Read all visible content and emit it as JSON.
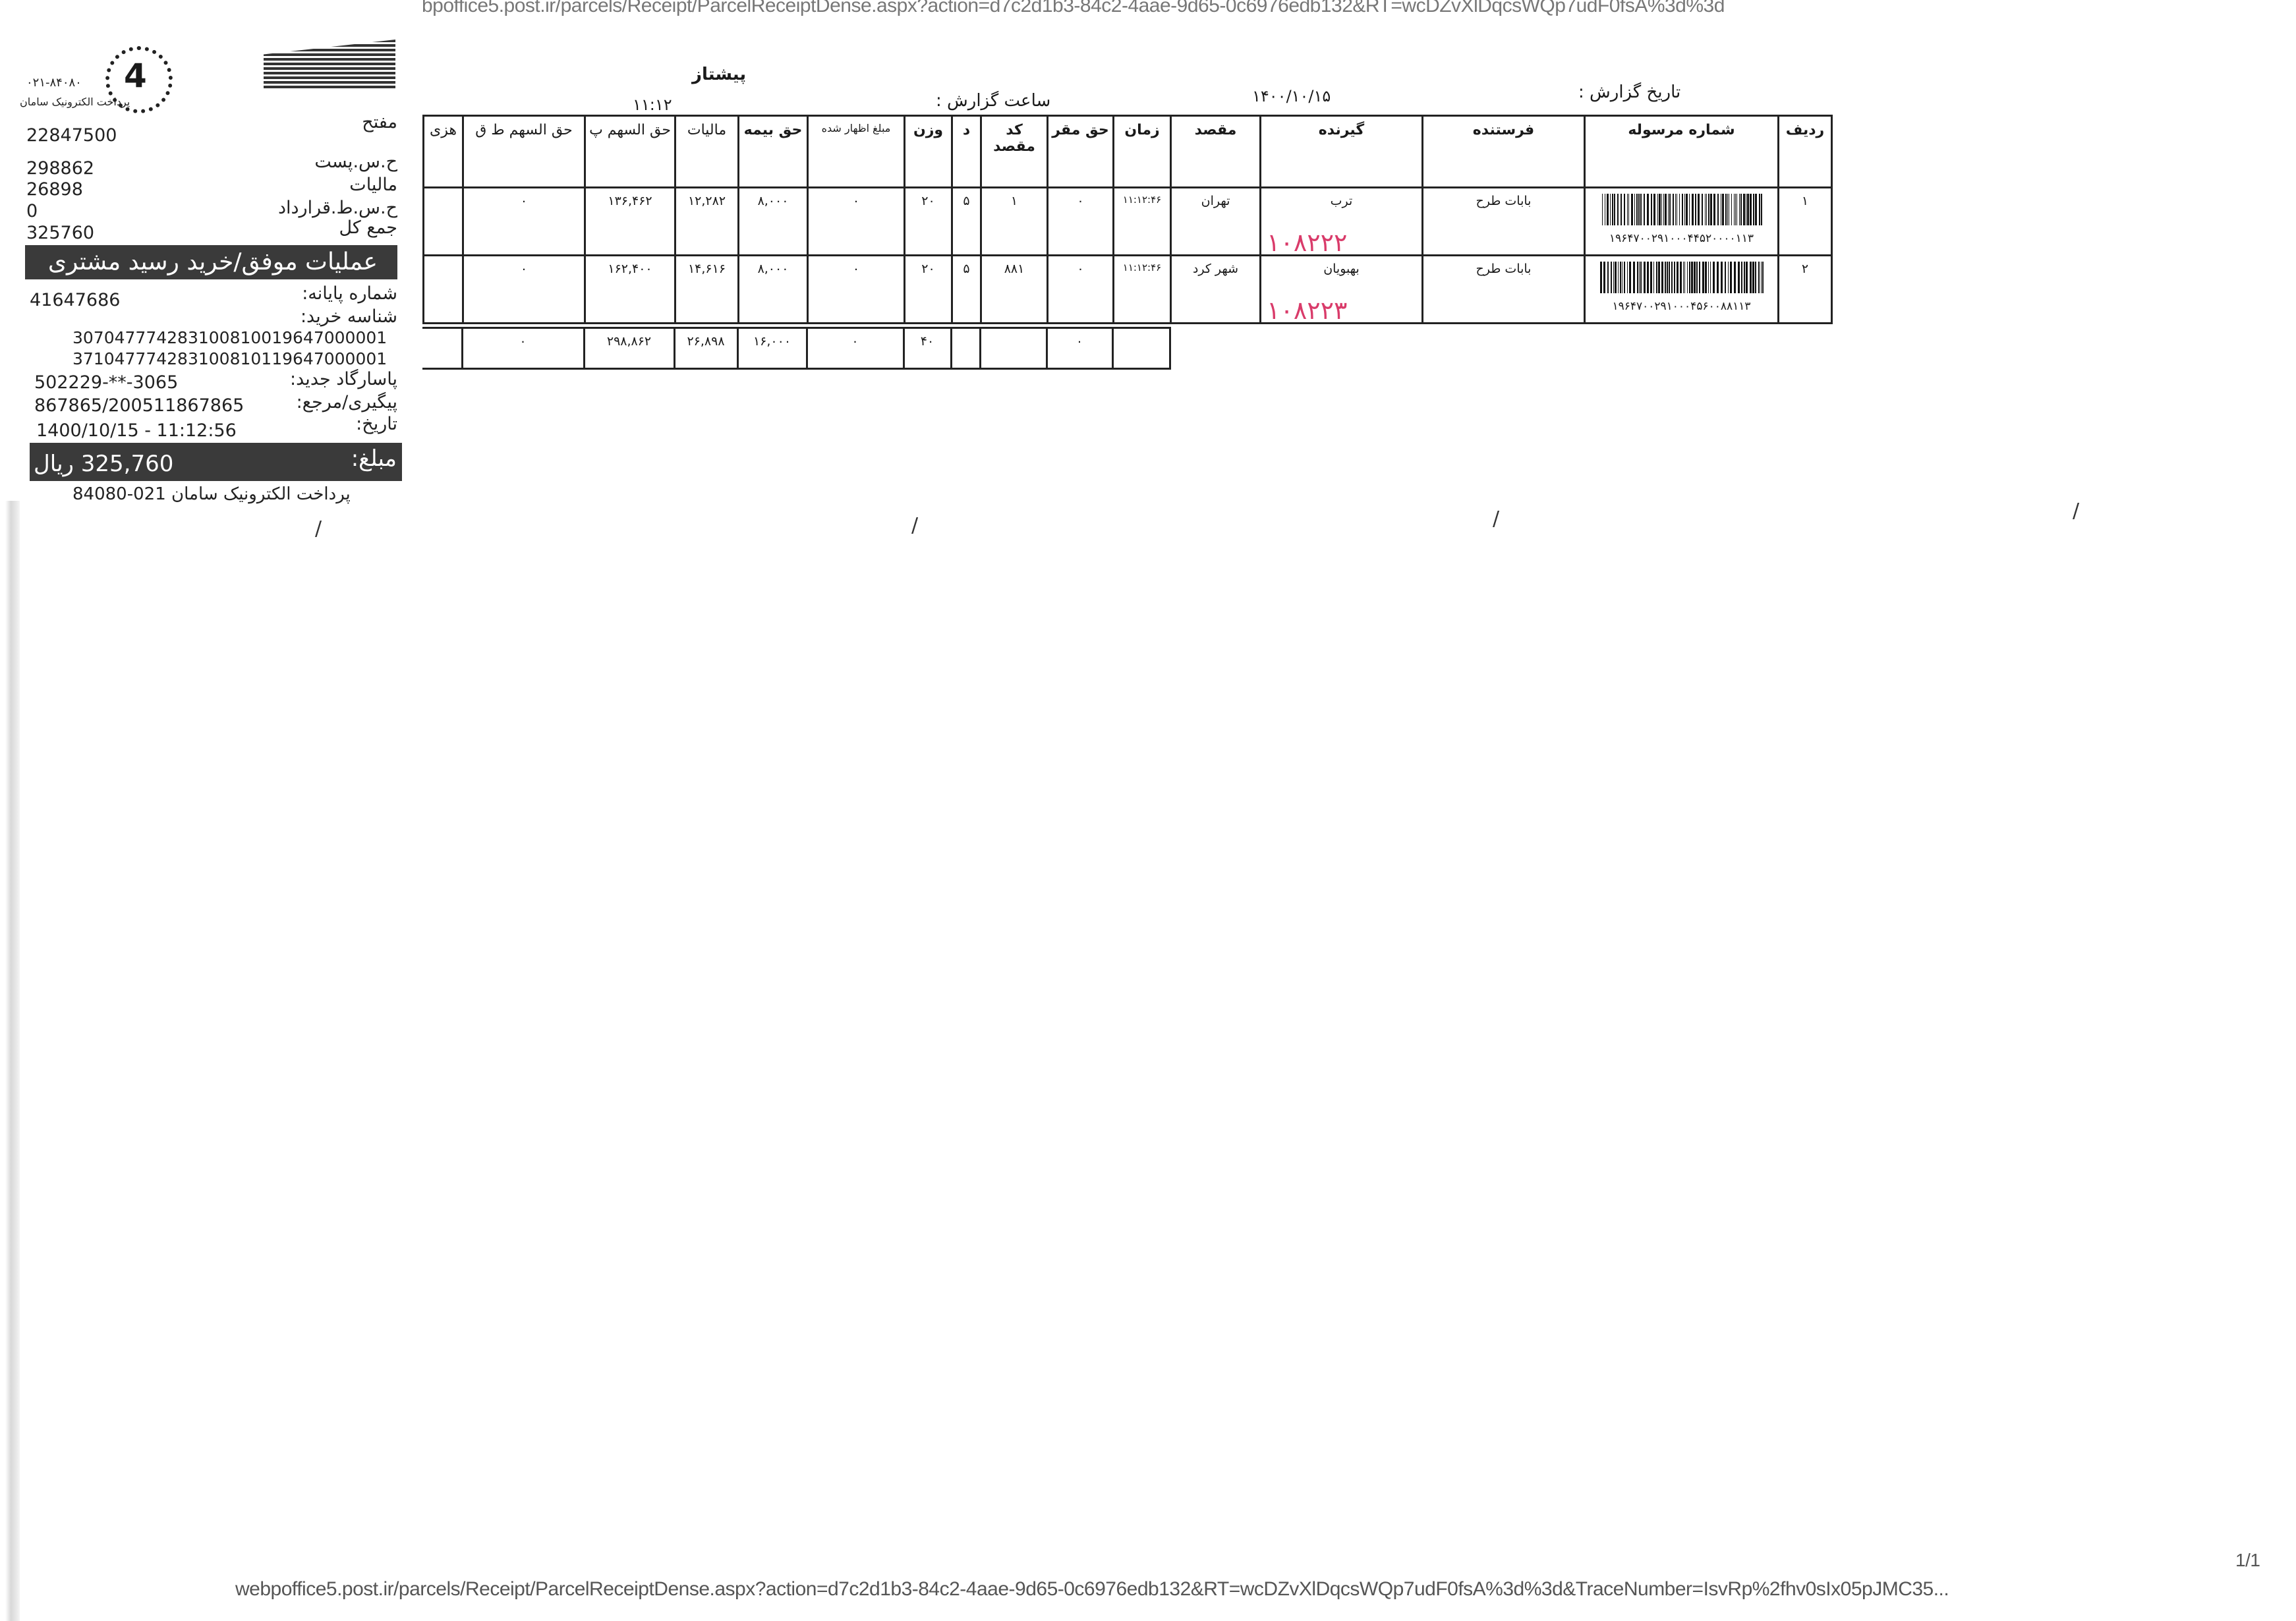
{
  "top_url": "bpoffice5.post.ir/parcels/Receipt/ParcelReceiptDense.aspx?action=d7c2d1b3-84c2-4aae-9d65-0c6976edb132&RT=wcDZvXlDqcsWQp7udF0fsA%3d%3d",
  "footer": {
    "url": "webpoffice5.post.ir/parcels/Receipt/ParcelReceiptDense.aspx?action=d7c2d1b3-84c2-4aae-9d65-0c6976edb132&RT=wcDZvXlDqcsWQp7udF0fsA%3d%3d&TraceNumber=IsvRp%2fhv0sIx05pJMC35...",
    "page": "1/1"
  },
  "receipt": {
    "logo_phone": "۰۲۱-۸۴۰۸۰",
    "logo_caption": "پرداخت الکترونیک سامان",
    "logo_number": "4",
    "merchant_label": "مفتح",
    "merchant_value": "22847500",
    "rows": [
      {
        "label": "ح.س.پست",
        "value": "298862"
      },
      {
        "label": "مالیات",
        "value": "26898"
      },
      {
        "label": "ح.س.ط.قرارداد",
        "value": "0"
      },
      {
        "label": "جمع کل",
        "value": "325760"
      }
    ],
    "status_band": "عملیات موفق/خرید رسید مشتری",
    "terminal_label": "شماره پایانه:",
    "terminal_value": "41647686",
    "purchase_id_label": "شناسه خرید:",
    "purchase_ids": [
      "307047774283100810019647000001",
      "371047774283100810119647000001"
    ],
    "card_label": "پاسارگاد جدید:",
    "card_value": "502229-**-3065",
    "trace_label": "پیگیری/مرجع:",
    "trace_value": "867865/200511867865",
    "date_label": "تاریخ:",
    "date_value": "1400/10/15 - 11:12:56",
    "amount_label": "مبلغ:",
    "amount_value": "325,760 ریال",
    "footer": "پرداخت الکترونیک سامان 021-84080"
  },
  "report": {
    "title": "پیشتاز",
    "date_label": "تاریخ گزارش :",
    "date_value": "۱۴۰۰/۱۰/۱۵",
    "time_label": "ساعت گزارش :",
    "time_value": "۱۱:۱۲"
  },
  "table": {
    "headers": [
      "ردیف",
      "شماره مرسوله",
      "فرستنده",
      "گیرنده",
      "مقصد",
      "زمان",
      "حق مقر",
      "کد مقصد",
      "د",
      "وزن",
      "مبلغ اظهار شده",
      "حق بیمه",
      "مالیات",
      "حق السهم پ",
      "حق السهم ط ق",
      "هزی"
    ],
    "rows": [
      {
        "row": "۱",
        "barcode": "۱۹۶۴۷۰۰۲۹۱۰۰۰۴۴۵۲۰۰۰۰۱۱۳",
        "sender": "بابات طرح",
        "recipient": "ترب",
        "handwritten": "۱۰۸۲۲۲",
        "destination": "تهران",
        "time": "۱۱:۱۲:۴۶",
        "hagh_maghar": "۰",
        "dest_code": "۱",
        "d": "۵",
        "weight": "۲۰",
        "declared": "۰",
        "insurance": "۸,۰۰۰",
        "tax": "۱۲,۲۸۲",
        "share_p": "۱۳۶,۴۶۲",
        "share_tq": "۰",
        "extra": ""
      },
      {
        "row": "۲",
        "barcode": "۱۹۶۴۷۰۰۲۹۱۰۰۰۴۵۶۰۰۸۸۱۱۳",
        "sender": "بابات طرح",
        "recipient": "بهبویان",
        "handwritten": "۱۰۸۲۲۳",
        "destination": "شهر کرد",
        "time": "۱۱:۱۲:۴۶",
        "hagh_maghar": "۰",
        "dest_code": "۸۸۱",
        "d": "۵",
        "weight": "۲۰",
        "declared": "۰",
        "insurance": "۸,۰۰۰",
        "tax": "۱۴,۶۱۶",
        "share_p": "۱۶۲,۴۰۰",
        "share_tq": "۰",
        "extra": ""
      }
    ],
    "totals": {
      "hagh_maghar": "۰",
      "weight": "۴۰",
      "declared": "۰",
      "insurance": "۱۶,۰۰۰",
      "tax": "۲۶,۸۹۸",
      "share_p": "۲۹۸,۸۶۲",
      "share_tq": "۰"
    }
  }
}
